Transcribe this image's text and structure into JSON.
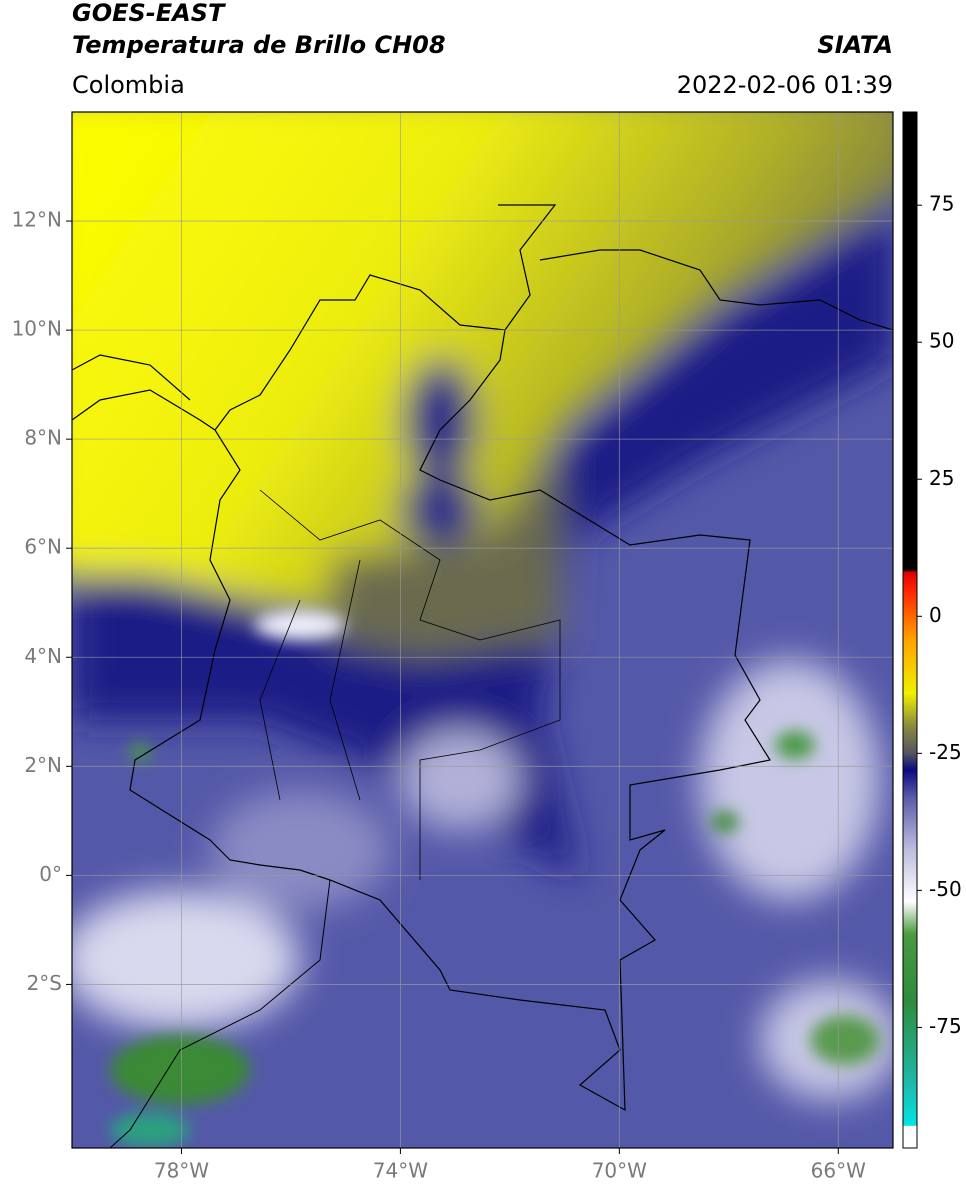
{
  "header": {
    "satellite": "GOES-EAST",
    "product": "Temperatura de Brillo CH08",
    "source": "SIATA",
    "region": "Colombia",
    "datetime": "2022-02-06 01:39"
  },
  "chart_data": {
    "type": "map",
    "xlim": [
      -80,
      -65
    ],
    "ylim": [
      -5,
      14
    ],
    "xticks": [
      {
        "value": -78,
        "label": "78°W"
      },
      {
        "value": -74,
        "label": "74°W"
      },
      {
        "value": -70,
        "label": "70°W"
      },
      {
        "value": -66,
        "label": "66°W"
      }
    ],
    "yticks": [
      {
        "value": 12,
        "label": "12°N"
      },
      {
        "value": 10,
        "label": "10°N"
      },
      {
        "value": 8,
        "label": "8°N"
      },
      {
        "value": 6,
        "label": "6°N"
      },
      {
        "value": 4,
        "label": "4°N"
      },
      {
        "value": 2,
        "label": "2°N"
      },
      {
        "value": 0,
        "label": "0°"
      },
      {
        "value": -2,
        "label": "2°S"
      }
    ],
    "grid": true,
    "grid_color": "#9a9a9a",
    "colorbar": {
      "lim": [
        -97,
        92
      ],
      "ticks": [
        75,
        50,
        25,
        0,
        -25,
        -50,
        -75
      ],
      "stops": [
        {
          "value": -97,
          "color": "#ffffff"
        },
        {
          "value": -93,
          "color": "#ffffff"
        },
        {
          "value": -92.9,
          "color": "#00e5e5"
        },
        {
          "value": -85,
          "color": "#20b8a8"
        },
        {
          "value": -70,
          "color": "#2e8c3c"
        },
        {
          "value": -58,
          "color": "#4a9a40"
        },
        {
          "value": -52,
          "color": "#ffffff"
        },
        {
          "value": -42,
          "color": "#b8b8dc"
        },
        {
          "value": -33,
          "color": "#5a5aaa"
        },
        {
          "value": -28,
          "color": "#0a0a80"
        },
        {
          "value": -25,
          "color": "#555560"
        },
        {
          "value": -20,
          "color": "#8a8a40"
        },
        {
          "value": -14,
          "color": "#f0f000"
        },
        {
          "value": -4,
          "color": "#ffa000"
        },
        {
          "value": 5,
          "color": "#ff2000"
        },
        {
          "value": 8,
          "color": "#e00000"
        },
        {
          "value": 8.5,
          "color": "#000000"
        },
        {
          "value": 92,
          "color": "#000000"
        }
      ]
    }
  }
}
